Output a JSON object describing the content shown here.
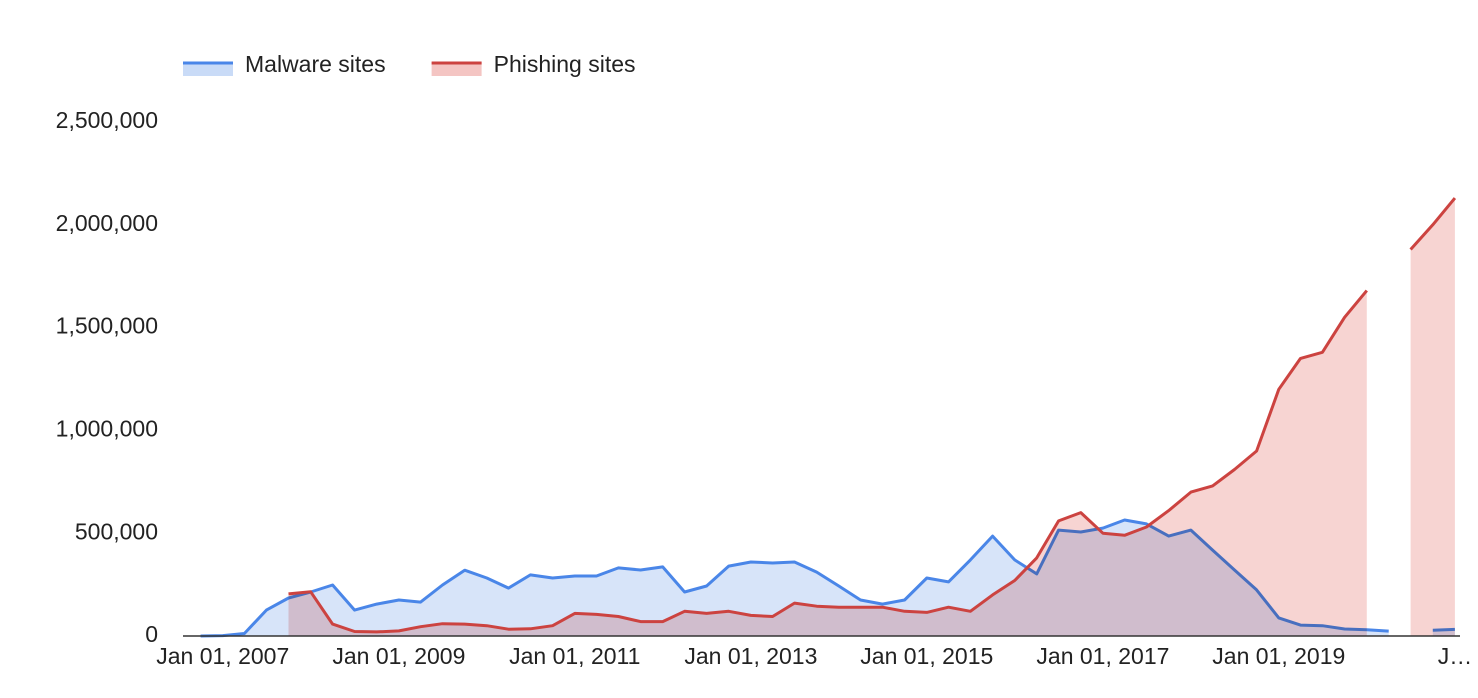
{
  "chart_data": {
    "type": "area",
    "x": [
      "2006-10-01",
      "2007-01-01",
      "2007-04-01",
      "2007-07-01",
      "2007-10-01",
      "2008-01-01",
      "2008-04-01",
      "2008-07-01",
      "2008-10-01",
      "2009-01-01",
      "2009-04-01",
      "2009-07-01",
      "2009-10-01",
      "2010-01-01",
      "2010-04-01",
      "2010-07-01",
      "2010-10-01",
      "2011-01-01",
      "2011-04-01",
      "2011-07-01",
      "2011-10-01",
      "2012-01-01",
      "2012-04-01",
      "2012-07-01",
      "2012-10-01",
      "2013-01-01",
      "2013-04-01",
      "2013-07-01",
      "2013-10-01",
      "2014-01-01",
      "2014-04-01",
      "2014-07-01",
      "2014-10-01",
      "2015-01-01",
      "2015-04-01",
      "2015-07-01",
      "2015-10-01",
      "2016-01-01",
      "2016-04-01",
      "2016-07-01",
      "2016-10-01",
      "2017-01-01",
      "2017-04-01",
      "2017-07-01",
      "2017-10-01",
      "2018-01-01",
      "2018-04-01",
      "2018-07-01",
      "2018-10-01",
      "2019-01-01",
      "2019-04-01",
      "2019-07-01",
      "2019-10-01",
      "2020-01-01",
      "2020-04-01",
      "2020-07-01",
      "2020-10-01",
      "2021-01-01"
    ],
    "series": [
      {
        "name": "Malware sites",
        "color": "#4a86e8",
        "fill": "#c9dbf7",
        "values": [
          0,
          2000,
          12000,
          126000,
          185000,
          214000,
          248000,
          126000,
          155000,
          175000,
          165000,
          248000,
          320000,
          282000,
          233000,
          297000,
          282000,
          292000,
          292000,
          331000,
          321000,
          336000,
          214000,
          243000,
          340000,
          360000,
          355000,
          360000,
          311000,
          243000,
          175000,
          155000,
          175000,
          282000,
          263000,
          370000,
          486000,
          370000,
          302000,
          515000,
          506000,
          525000,
          564000,
          545000,
          486000,
          515000,
          418000,
          321000,
          224000,
          88000,
          53000,
          50000,
          34000,
          30000,
          24000,
          null,
          28000,
          32000
        ]
      },
      {
        "name": "Phishing sites",
        "color": "#cc4340",
        "fill": "#f4c5c3",
        "values": [
          null,
          null,
          null,
          null,
          205000,
          215000,
          58000,
          22000,
          20000,
          25000,
          45000,
          60000,
          58000,
          50000,
          33000,
          35000,
          50000,
          110000,
          105000,
          95000,
          70000,
          70000,
          120000,
          110000,
          120000,
          100000,
          95000,
          160000,
          145000,
          140000,
          140000,
          140000,
          120000,
          115000,
          140000,
          120000,
          200000,
          270000,
          380000,
          560000,
          600000,
          500000,
          490000,
          530000,
          610000,
          700000,
          730000,
          810000,
          900000,
          1200000,
          1350000,
          1380000,
          1550000,
          1680000,
          null,
          1880000,
          2000000,
          2130000
        ]
      }
    ],
    "xlim": [
      "2006-07-20",
      "2021-01-22"
    ],
    "xticks": [
      {
        "value": "2007-01-01",
        "label": "Jan 01, 2007"
      },
      {
        "value": "2009-01-01",
        "label": "Jan 01, 2009"
      },
      {
        "value": "2011-01-01",
        "label": "Jan 01, 2011"
      },
      {
        "value": "2013-01-01",
        "label": "Jan 01, 2013"
      },
      {
        "value": "2015-01-01",
        "label": "Jan 01, 2015"
      },
      {
        "value": "2017-01-01",
        "label": "Jan 01, 2017"
      },
      {
        "value": "2019-01-01",
        "label": "Jan 01, 2019"
      },
      {
        "value": "2021-01-01",
        "label": "J…"
      }
    ],
    "ylim": [
      0,
      2500000
    ],
    "yticks": [
      0,
      {
        "value": 500000,
        "label": "500,000"
      },
      {
        "value": 1000000,
        "label": "1,000,000"
      },
      {
        "value": 1500000,
        "label": "1,500,000"
      },
      {
        "value": 2000000,
        "label": "2,000,000"
      },
      {
        "value": 2500000,
        "label": "2,500,000"
      }
    ],
    "grid": false,
    "legend": "top"
  }
}
